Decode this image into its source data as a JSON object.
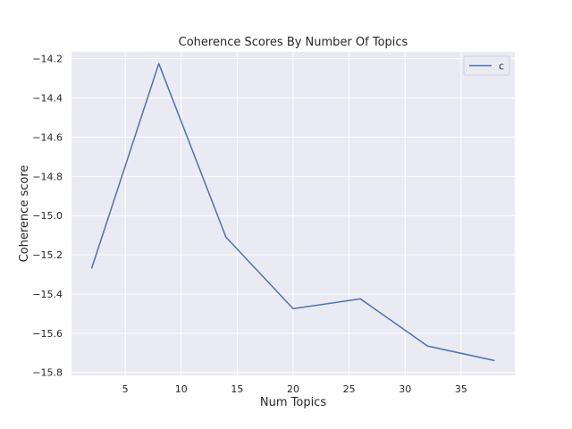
{
  "chart_data": {
    "type": "line",
    "title": "Coherence Scores By Number Of Topics",
    "xlabel": "Num Topics",
    "ylabel": "Coherence score",
    "x": [
      2,
      8,
      14,
      20,
      26,
      32,
      38
    ],
    "series": [
      {
        "name": "c",
        "values": [
          -15.27,
          -14.225,
          -15.11,
          -15.475,
          -15.425,
          -15.665,
          -15.74
        ]
      }
    ],
    "xlim": [
      0.2,
      39.8
    ],
    "ylim": [
      -15.815,
      -14.165
    ],
    "xticks": [
      5,
      10,
      15,
      20,
      25,
      30,
      35
    ],
    "xtick_labels": [
      "5",
      "10",
      "15",
      "20",
      "25",
      "30",
      "35"
    ],
    "yticks": [
      -14.2,
      -14.4,
      -14.6,
      -14.8,
      -15.0,
      -15.2,
      -15.4,
      -15.6,
      -15.8
    ],
    "ytick_labels": [
      "−14.2",
      "−14.4",
      "−14.6",
      "−14.8",
      "−15.0",
      "−15.2",
      "−15.4",
      "−15.6",
      "−15.8"
    ],
    "grid": true,
    "legend": "top-right",
    "colors": {
      "line": "#4c72b0",
      "plot_bg": "#eaeaf2",
      "grid": "#ffffff"
    }
  }
}
